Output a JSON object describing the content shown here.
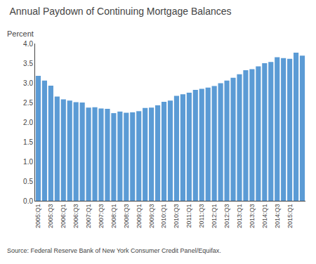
{
  "chart_data": {
    "type": "bar",
    "title": "Annual Paydown of Continuing Mortgage Balances",
    "ylabel": "Percent",
    "annotations": [
      "Source: Federal Reserve Bank of New York Consumer Credit Panel/Equifax."
    ],
    "categories": [
      "2005:Q1",
      null,
      "2005:Q3",
      null,
      "2006:Q1",
      null,
      "2006:Q3",
      null,
      "2007:Q1",
      null,
      "2007:Q3",
      null,
      "2008:Q1",
      null,
      "2008:Q3",
      null,
      "2009:Q1",
      null,
      "2009:Q3",
      null,
      "2010:Q1",
      null,
      "2010:Q3",
      null,
      "2011:Q1",
      null,
      "2011:Q3",
      null,
      "2012:Q1",
      null,
      "2012:Q3",
      null,
      "2013:Q1",
      null,
      "2013:Q3",
      null,
      "2014:Q1",
      null,
      "2014:Q3",
      null,
      "2015:Q1",
      null,
      null
    ],
    "values": [
      3.18,
      3.06,
      2.93,
      2.65,
      2.58,
      2.55,
      2.51,
      2.5,
      2.37,
      2.38,
      2.35,
      2.34,
      2.23,
      2.27,
      2.24,
      2.25,
      2.28,
      2.36,
      2.37,
      2.43,
      2.52,
      2.55,
      2.67,
      2.71,
      2.75,
      2.82,
      2.85,
      2.88,
      2.92,
      2.99,
      3.06,
      3.13,
      3.22,
      3.32,
      3.35,
      3.42,
      3.5,
      3.53,
      3.65,
      3.63,
      3.61,
      3.77,
      3.69
    ],
    "color": "#5b9bd5",
    "ylim": [
      0,
      4.0
    ],
    "yticks": [
      {
        "value": 0,
        "label": "0.0"
      },
      0.5,
      {
        "value": 1.0,
        "label": "1.0"
      },
      1.5,
      {
        "value": 2.0,
        "label": "2.0"
      },
      2.5,
      {
        "value": 3.0,
        "label": "3.0"
      },
      3.5,
      {
        "value": 4.0,
        "label": "4.0"
      }
    ],
    "grid": false
  }
}
